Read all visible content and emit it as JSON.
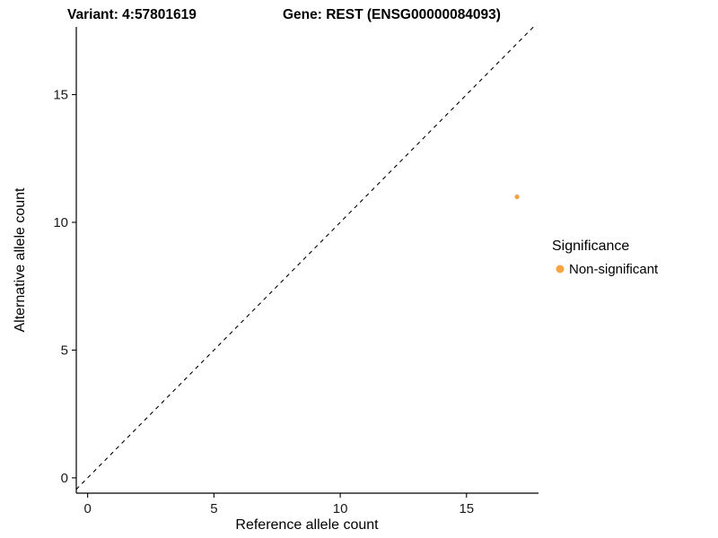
{
  "header": {
    "variant_title": "Variant: 4:57801619",
    "gene_title": "Gene: REST (ENSG00000084093)"
  },
  "chart_data": {
    "type": "scatter",
    "title": "Variant: 4:57801619 — Gene: REST (ENSG00000084093)",
    "xlabel": "Reference allele count",
    "ylabel": "Alternative allele count",
    "xlim": [
      -0.45,
      17.85
    ],
    "ylim": [
      -0.6,
      17.65
    ],
    "xticks": [
      0,
      5,
      10,
      15
    ],
    "yticks": [
      0,
      5,
      10,
      15
    ],
    "grid": false,
    "background": "#ffffff",
    "axis_color": "#000000",
    "identity_line": {
      "type": "y=x",
      "style": "dashed",
      "color": "#000000"
    },
    "series": [
      {
        "name": "Non-significant",
        "color": "#F9A242",
        "point_radius": 2.6,
        "points": [
          {
            "x": 17,
            "y": 11
          }
        ]
      }
    ],
    "legend": {
      "title": "Significance",
      "position": "right",
      "entries": [
        {
          "label": "Non-significant",
          "color": "#F9A242"
        }
      ]
    }
  }
}
